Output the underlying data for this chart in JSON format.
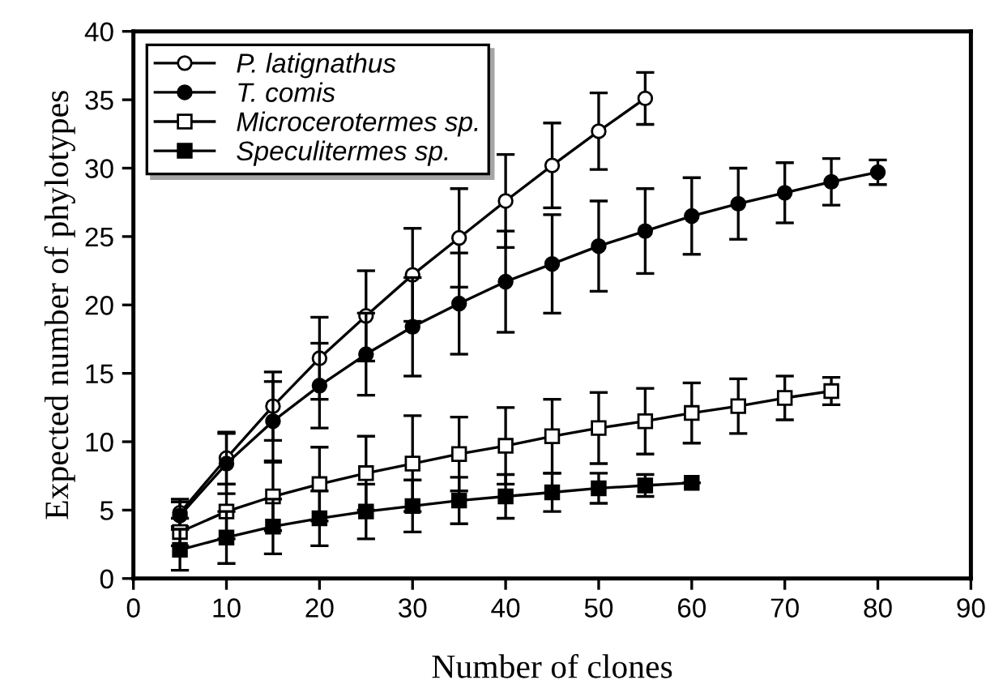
{
  "chart_data": {
    "type": "line",
    "xlabel": "Number of clones",
    "ylabel": "Expected number of phylotypes",
    "xlim": [
      0,
      90
    ],
    "xticks": [
      0,
      10,
      20,
      30,
      40,
      50,
      60,
      70,
      80,
      90
    ],
    "ylim": [
      0,
      40
    ],
    "yticks": [
      0,
      5,
      10,
      15,
      20,
      25,
      30,
      35,
      40
    ],
    "grid": false,
    "legend": "top left",
    "line_style": "solid",
    "series": [
      {
        "name": "P. latignathus",
        "color": "#ffffff",
        "marker": "circle",
        "x": [
          5,
          10,
          15,
          20,
          25,
          30,
          35,
          40,
          45,
          50,
          55
        ],
        "values": [
          4.8,
          8.8,
          12.6,
          16.1,
          19.2,
          22.2,
          24.9,
          27.6,
          30.2,
          32.7,
          35.1
        ],
        "errors": [
          1.0,
          1.9,
          2.5,
          3.0,
          3.3,
          3.4,
          3.6,
          3.4,
          3.1,
          2.8,
          1.9
        ]
      },
      {
        "name": "T. comis",
        "color": "#000000",
        "marker": "circle",
        "x": [
          5,
          10,
          15,
          20,
          25,
          30,
          35,
          40,
          45,
          50,
          55,
          60,
          65,
          70,
          75,
          80
        ],
        "values": [
          4.6,
          8.4,
          11.5,
          14.1,
          16.4,
          18.4,
          20.1,
          21.7,
          23.0,
          24.3,
          25.4,
          26.5,
          27.4,
          28.2,
          29.0,
          29.7
        ],
        "errors": [
          1.0,
          2.2,
          2.9,
          3.1,
          3.0,
          3.6,
          3.7,
          3.7,
          3.6,
          3.3,
          3.1,
          2.8,
          2.6,
          2.2,
          1.7,
          0.9
        ]
      },
      {
        "name": "Microcerotermes sp.",
        "color": "#ffffff",
        "marker": "square",
        "x": [
          5,
          10,
          15,
          20,
          25,
          30,
          35,
          40,
          45,
          50,
          55,
          60,
          65,
          70,
          75
        ],
        "values": [
          3.4,
          4.9,
          6.0,
          6.9,
          7.7,
          8.4,
          9.1,
          9.7,
          10.4,
          11.0,
          11.5,
          12.1,
          12.6,
          13.2,
          13.7
        ],
        "errors": [
          1.0,
          2.0,
          2.5,
          2.7,
          2.7,
          3.5,
          2.7,
          2.8,
          2.7,
          2.6,
          2.4,
          2.2,
          2.0,
          1.6,
          1.0
        ]
      },
      {
        "name": "Speculitermes sp.",
        "color": "#000000",
        "marker": "square",
        "x": [
          5,
          10,
          15,
          20,
          25,
          30,
          35,
          40,
          45,
          50,
          55,
          60
        ],
        "values": [
          2.1,
          3.0,
          3.8,
          4.4,
          4.9,
          5.3,
          5.7,
          6.0,
          6.3,
          6.6,
          6.8,
          7.0
        ],
        "errors": [
          1.5,
          1.9,
          2.0,
          2.0,
          2.0,
          1.9,
          1.7,
          1.6,
          1.4,
          1.1,
          0.8,
          null
        ]
      }
    ]
  }
}
